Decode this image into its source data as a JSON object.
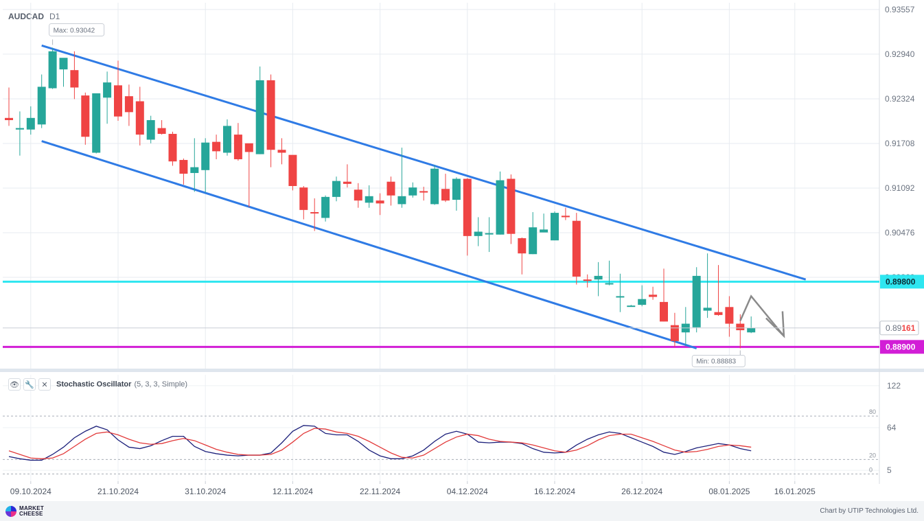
{
  "header": {
    "symbol": "AUDCAD",
    "timeframe": "D1"
  },
  "indicator": {
    "name": "Stochastic Oscillator",
    "params": "(5, 3, 3, Simple)"
  },
  "footer": {
    "logo_text": "MARKET\nCHEESE",
    "credit": "Chart by UTIP Technologies Ltd."
  },
  "colors": {
    "up": "#26a69a",
    "down": "#ef4444",
    "channel": "#2f7be5",
    "resistance": "#2ee6f0",
    "support": "#d21ed6",
    "stoch_k": "#1b1f7a",
    "stoch_d": "#e23a3a",
    "arrow": "#8a8a8a"
  },
  "chart_data": [
    {
      "type": "candlestick",
      "symbol": "AUDCAD",
      "timeframe": "D1",
      "y_ticks": [
        0.93557,
        0.9294,
        0.92324,
        0.91708,
        0.91092,
        0.90476,
        0.8986
      ],
      "y_range": [
        0.886,
        0.9365
      ],
      "x_ticks": [
        "09.10.2024",
        "21.10.2024",
        "31.10.2024",
        "12.11.2024",
        "22.11.2024",
        "04.12.2024",
        "16.12.2024",
        "26.12.2024",
        "08.01.2025",
        "16.01.2025"
      ],
      "annotations": {
        "max_label": "Max: 0.93042",
        "min_label": "Min: 0.88883"
      },
      "levels": [
        {
          "label": "0.89800",
          "value": 0.898,
          "role": "resistance"
        },
        {
          "label": "0.88900",
          "value": 0.889,
          "role": "support"
        }
      ],
      "current_price": {
        "label_prefix": "0.89",
        "label_suffix": "161",
        "value": 0.89161
      },
      "channel": {
        "upper": [
          [
            "10.10.2024",
            0.9306
          ],
          [
            "18.01.2025",
            0.8983
          ]
        ],
        "lower": [
          [
            "10.10.2024",
            0.9174
          ],
          [
            "03.01.2025",
            0.8888
          ]
        ]
      },
      "projection_arrow": [
        [
          "09.01.2025",
          0.8926
        ],
        [
          "11.01.2025",
          0.896
        ],
        [
          "15.01.2025",
          0.8905
        ]
      ],
      "candles": [
        {
          "d": "07.10.2024",
          "o": 0.9206,
          "h": 0.9248,
          "l": 0.9195,
          "c": 0.9203
        },
        {
          "d": "08.10.2024",
          "o": 0.919,
          "h": 0.9215,
          "l": 0.9154,
          "c": 0.9192
        },
        {
          "d": "09.10.2024",
          "o": 0.919,
          "h": 0.9222,
          "l": 0.9183,
          "c": 0.9206
        },
        {
          "d": "10.10.2024",
          "o": 0.9197,
          "h": 0.9266,
          "l": 0.9192,
          "c": 0.9249
        },
        {
          "d": "11.10.2024",
          "o": 0.9247,
          "h": 0.9303,
          "l": 0.9246,
          "c": 0.9298
        },
        {
          "d": "14.10.2024",
          "o": 0.9273,
          "h": 0.9288,
          "l": 0.9249,
          "c": 0.9289
        },
        {
          "d": "15.10.2024",
          "o": 0.9272,
          "h": 0.9298,
          "l": 0.9232,
          "c": 0.9248
        },
        {
          "d": "16.10.2024",
          "o": 0.9237,
          "h": 0.9241,
          "l": 0.9169,
          "c": 0.918
        },
        {
          "d": "17.10.2024",
          "o": 0.9158,
          "h": 0.9239,
          "l": 0.9157,
          "c": 0.924
        },
        {
          "d": "18.10.2024",
          "o": 0.9234,
          "h": 0.927,
          "l": 0.9198,
          "c": 0.9255
        },
        {
          "d": "21.10.2024",
          "o": 0.9251,
          "h": 0.9285,
          "l": 0.9202,
          "c": 0.9208
        },
        {
          "d": "22.10.2024",
          "o": 0.9236,
          "h": 0.9252,
          "l": 0.9195,
          "c": 0.9214
        },
        {
          "d": "23.10.2024",
          "o": 0.9229,
          "h": 0.9249,
          "l": 0.9168,
          "c": 0.9183
        },
        {
          "d": "24.10.2024",
          "o": 0.9176,
          "h": 0.9209,
          "l": 0.9171,
          "c": 0.9203
        },
        {
          "d": "25.10.2024",
          "o": 0.9192,
          "h": 0.9203,
          "l": 0.9183,
          "c": 0.9184
        },
        {
          "d": "28.10.2024",
          "o": 0.9184,
          "h": 0.9187,
          "l": 0.914,
          "c": 0.9146
        },
        {
          "d": "29.10.2024",
          "o": 0.9148,
          "h": 0.915,
          "l": 0.9114,
          "c": 0.9129
        },
        {
          "d": "30.10.2024",
          "o": 0.913,
          "h": 0.9178,
          "l": 0.9104,
          "c": 0.9138
        },
        {
          "d": "31.10.2024",
          "o": 0.9134,
          "h": 0.9178,
          "l": 0.9103,
          "c": 0.9172
        },
        {
          "d": "01.11.2024",
          "o": 0.9173,
          "h": 0.9183,
          "l": 0.9149,
          "c": 0.916
        },
        {
          "d": "04.11.2024",
          "o": 0.9158,
          "h": 0.9204,
          "l": 0.9154,
          "c": 0.9195
        },
        {
          "d": "05.11.2024",
          "o": 0.9183,
          "h": 0.9199,
          "l": 0.9147,
          "c": 0.9149
        },
        {
          "d": "06.11.2024",
          "o": 0.9171,
          "h": 0.917,
          "l": 0.9083,
          "c": 0.9159
        },
        {
          "d": "07.11.2024",
          "o": 0.9156,
          "h": 0.9277,
          "l": 0.9156,
          "c": 0.9258
        },
        {
          "d": "08.11.2024",
          "o": 0.9258,
          "h": 0.9266,
          "l": 0.9138,
          "c": 0.9162
        },
        {
          "d": "11.11.2024",
          "o": 0.9162,
          "h": 0.9178,
          "l": 0.9142,
          "c": 0.9158
        },
        {
          "d": "12.11.2024",
          "o": 0.9155,
          "h": 0.9153,
          "l": 0.9106,
          "c": 0.9112
        },
        {
          "d": "13.11.2024",
          "o": 0.911,
          "h": 0.9112,
          "l": 0.9066,
          "c": 0.9079
        },
        {
          "d": "14.11.2024",
          "o": 0.9076,
          "h": 0.9095,
          "l": 0.905,
          "c": 0.9075
        },
        {
          "d": "15.11.2024",
          "o": 0.9068,
          "h": 0.9099,
          "l": 0.9063,
          "c": 0.9097
        },
        {
          "d": "18.11.2024",
          "o": 0.9097,
          "h": 0.9125,
          "l": 0.9091,
          "c": 0.9119
        },
        {
          "d": "19.11.2024",
          "o": 0.9118,
          "h": 0.9142,
          "l": 0.911,
          "c": 0.9115
        },
        {
          "d": "20.11.2024",
          "o": 0.9107,
          "h": 0.9116,
          "l": 0.9082,
          "c": 0.9092
        },
        {
          "d": "21.11.2024",
          "o": 0.9089,
          "h": 0.9113,
          "l": 0.9082,
          "c": 0.9098
        },
        {
          "d": "22.11.2024",
          "o": 0.9092,
          "h": 0.9102,
          "l": 0.9072,
          "c": 0.9088
        },
        {
          "d": "25.11.2024",
          "o": 0.9118,
          "h": 0.9125,
          "l": 0.9085,
          "c": 0.9099
        },
        {
          "d": "26.11.2024",
          "o": 0.9087,
          "h": 0.9165,
          "l": 0.9082,
          "c": 0.9098
        },
        {
          "d": "27.11.2024",
          "o": 0.9099,
          "h": 0.9117,
          "l": 0.9096,
          "c": 0.911
        },
        {
          "d": "28.11.2024",
          "o": 0.9105,
          "h": 0.9111,
          "l": 0.9092,
          "c": 0.9103
        },
        {
          "d": "29.11.2024",
          "o": 0.9087,
          "h": 0.9141,
          "l": 0.9086,
          "c": 0.9136
        },
        {
          "d": "02.12.2024",
          "o": 0.9108,
          "h": 0.9129,
          "l": 0.909,
          "c": 0.9092
        },
        {
          "d": "03.12.2024",
          "o": 0.9093,
          "h": 0.9124,
          "l": 0.9078,
          "c": 0.9122
        },
        {
          "d": "04.12.2024",
          "o": 0.9122,
          "h": 0.9123,
          "l": 0.9016,
          "c": 0.9043
        },
        {
          "d": "05.12.2024",
          "o": 0.9043,
          "h": 0.9069,
          "l": 0.9029,
          "c": 0.9049
        },
        {
          "d": "06.12.2024",
          "o": 0.9046,
          "h": 0.9069,
          "l": 0.9021,
          "c": 0.9047
        },
        {
          "d": "09.12.2024",
          "o": 0.9045,
          "h": 0.9132,
          "l": 0.9045,
          "c": 0.912
        },
        {
          "d": "10.12.2024",
          "o": 0.9122,
          "h": 0.9128,
          "l": 0.9032,
          "c": 0.9046
        },
        {
          "d": "11.12.2024",
          "o": 0.904,
          "h": 0.9041,
          "l": 0.899,
          "c": 0.9019
        },
        {
          "d": "12.12.2024",
          "o": 0.9018,
          "h": 0.9076,
          "l": 0.9018,
          "c": 0.9055
        },
        {
          "d": "13.12.2024",
          "o": 0.9048,
          "h": 0.9074,
          "l": 0.9048,
          "c": 0.9052
        },
        {
          "d": "16.12.2024",
          "o": 0.9037,
          "h": 0.9077,
          "l": 0.9037,
          "c": 0.9075
        },
        {
          "d": "17.12.2024",
          "o": 0.9071,
          "h": 0.9082,
          "l": 0.9065,
          "c": 0.9069
        },
        {
          "d": "18.12.2024",
          "o": 0.9064,
          "h": 0.9075,
          "l": 0.8976,
          "c": 0.8987
        },
        {
          "d": "19.12.2024",
          "o": 0.8983,
          "h": 0.899,
          "l": 0.8972,
          "c": 0.8981
        },
        {
          "d": "20.12.2024",
          "o": 0.8983,
          "h": 0.9007,
          "l": 0.896,
          "c": 0.8988
        },
        {
          "d": "23.12.2024",
          "o": 0.8977,
          "h": 0.9009,
          "l": 0.8975,
          "c": 0.8978
        },
        {
          "d": "24.12.2024",
          "o": 0.896,
          "h": 0.8991,
          "l": 0.8938,
          "c": 0.896
        },
        {
          "d": "25.12.2024",
          "o": 0.8947,
          "h": 0.8948,
          "l": 0.8946,
          "c": 0.8947
        },
        {
          "d": "26.12.2024",
          "o": 0.8948,
          "h": 0.8975,
          "l": 0.8946,
          "c": 0.8956
        },
        {
          "d": "27.12.2024",
          "o": 0.8962,
          "h": 0.8973,
          "l": 0.8955,
          "c": 0.8959
        },
        {
          "d": "30.12.2024",
          "o": 0.8952,
          "h": 0.8998,
          "l": 0.8925,
          "c": 0.8925
        },
        {
          "d": "31.12.2024",
          "o": 0.892,
          "h": 0.8937,
          "l": 0.889,
          "c": 0.8898
        },
        {
          "d": "02.01.2025",
          "o": 0.891,
          "h": 0.8945,
          "l": 0.8891,
          "c": 0.8922
        },
        {
          "d": "03.01.2025",
          "o": 0.8917,
          "h": 0.9,
          "l": 0.891,
          "c": 0.8988
        },
        {
          "d": "06.01.2025",
          "o": 0.894,
          "h": 0.9019,
          "l": 0.893,
          "c": 0.8944
        },
        {
          "d": "07.01.2025",
          "o": 0.8938,
          "h": 0.9003,
          "l": 0.8933,
          "c": 0.8934
        },
        {
          "d": "08.01.2025",
          "o": 0.8945,
          "h": 0.896,
          "l": 0.8904,
          "c": 0.8922
        },
        {
          "d": "09.01.2025",
          "o": 0.8922,
          "h": 0.8935,
          "l": 0.8888,
          "c": 0.8913
        },
        {
          "d": "10.01.2025",
          "o": 0.891,
          "h": 0.8932,
          "l": 0.8909,
          "c": 0.8916
        }
      ]
    },
    {
      "type": "line",
      "title": "Stochastic Oscillator",
      "params": "(5, 3, 3, Simple)",
      "y_ticks": [
        122,
        64,
        5
      ],
      "y_range": [
        -10,
        137
      ],
      "levels": [
        80,
        20,
        0
      ],
      "x": [
        "07.10.2024",
        "08.10.2024",
        "09.10.2024",
        "10.10.2024",
        "11.10.2024",
        "14.10.2024",
        "15.10.2024",
        "16.10.2024",
        "17.10.2024",
        "18.10.2024",
        "21.10.2024",
        "22.10.2024",
        "23.10.2024",
        "24.10.2024",
        "25.10.2024",
        "28.10.2024",
        "29.10.2024",
        "30.10.2024",
        "31.10.2024",
        "01.11.2024",
        "04.11.2024",
        "05.11.2024",
        "06.11.2024",
        "07.11.2024",
        "08.11.2024",
        "11.11.2024",
        "12.11.2024",
        "13.11.2024",
        "14.11.2024",
        "15.11.2024",
        "18.11.2024",
        "19.11.2024",
        "20.11.2024",
        "21.11.2024",
        "22.11.2024",
        "25.11.2024",
        "26.11.2024",
        "27.11.2024",
        "28.11.2024",
        "29.11.2024",
        "02.12.2024",
        "03.12.2024",
        "04.12.2024",
        "05.12.2024",
        "06.12.2024",
        "09.12.2024",
        "10.12.2024",
        "11.12.2024",
        "12.12.2024",
        "13.12.2024",
        "16.12.2024",
        "17.12.2024",
        "18.12.2024",
        "19.12.2024",
        "20.12.2024",
        "23.12.2024",
        "24.12.2024",
        "25.12.2024",
        "26.12.2024",
        "27.12.2024",
        "30.12.2024",
        "31.12.2024",
        "02.01.2025",
        "03.01.2025",
        "06.01.2025",
        "07.01.2025",
        "08.01.2025",
        "09.01.2025",
        "10.01.2025"
      ],
      "series": [
        {
          "name": "%K",
          "values": [
            24,
            21,
            19,
            19,
            27,
            37,
            50,
            59,
            66,
            61,
            47,
            37,
            35,
            39,
            46,
            52,
            52,
            38,
            31,
            28,
            26,
            25,
            26,
            26,
            29,
            43,
            59,
            67,
            66,
            56,
            54,
            54,
            45,
            33,
            25,
            21,
            21,
            25,
            33,
            45,
            55,
            59,
            55,
            44,
            43,
            44,
            44,
            42,
            35,
            30,
            29,
            30,
            40,
            48,
            54,
            58,
            56,
            50,
            44,
            38,
            30,
            27,
            31,
            36,
            39,
            42,
            40,
            35,
            32
          ]
        },
        {
          "name": "%D",
          "values": [
            32,
            27,
            22,
            21,
            22,
            28,
            38,
            48,
            56,
            58,
            54,
            48,
            43,
            41,
            42,
            46,
            49,
            46,
            40,
            34,
            30,
            27,
            26,
            26,
            27,
            33,
            44,
            56,
            63,
            62,
            58,
            56,
            52,
            45,
            37,
            29,
            23,
            22,
            26,
            35,
            44,
            51,
            55,
            53,
            48,
            45,
            44,
            43,
            40,
            36,
            32,
            30,
            33,
            39,
            47,
            53,
            55,
            55,
            50,
            45,
            39,
            33,
            30,
            31,
            34,
            38,
            40,
            39,
            37
          ]
        }
      ]
    }
  ]
}
